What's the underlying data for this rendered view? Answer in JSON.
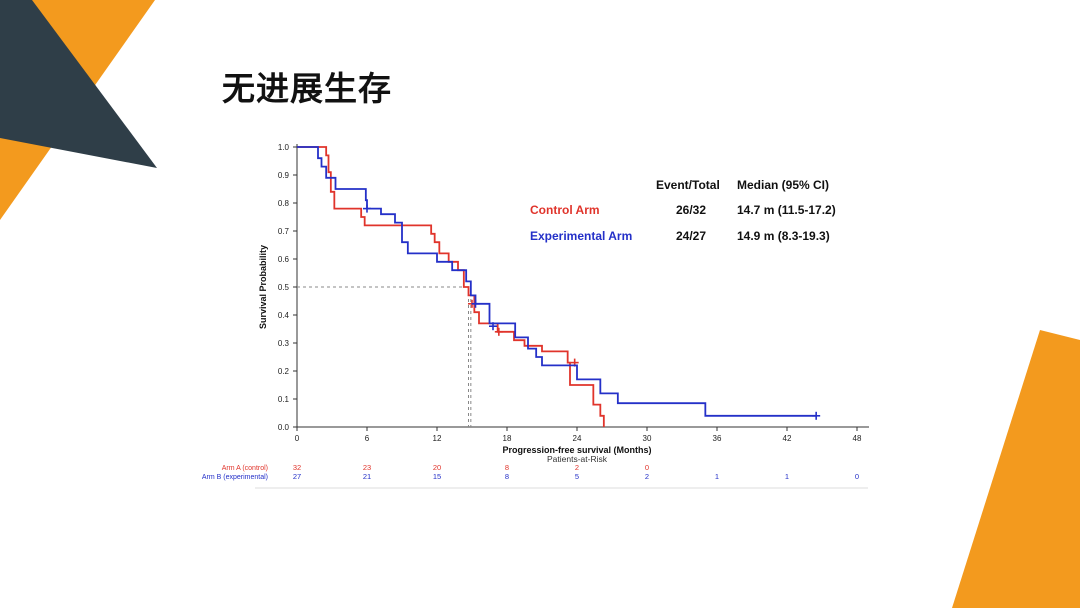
{
  "slide": {
    "title": "无进展生存",
    "colors": {
      "orange": "#F39A1E",
      "slate": "#2F3E48"
    }
  },
  "chart_data": {
    "type": "line",
    "title": "",
    "xlabel": "Progression-free survival (Months)",
    "ylabel": "Survival Probability",
    "xlim": [
      0,
      48
    ],
    "ylim": [
      0,
      1
    ],
    "xticks": [
      0,
      6,
      12,
      18,
      24,
      30,
      36,
      42,
      48
    ],
    "yticks": [
      0.0,
      0.1,
      0.2,
      0.3,
      0.4,
      0.5,
      0.6,
      0.7,
      0.8,
      0.9,
      1.0
    ],
    "median_reference": {
      "y": 0.5,
      "x": [
        14.7,
        14.9
      ]
    },
    "legend": {
      "headers": [
        "Event/Total",
        "Median (95% CI)"
      ],
      "rows": [
        {
          "name": "Control Arm",
          "events": "26/32",
          "median": "14.7 m (11.5-17.2)",
          "color": "#E0342B"
        },
        {
          "name": "Experimental Arm",
          "events": "24/27",
          "median": "14.9 m (8.3-19.3)",
          "color": "#2430C8"
        }
      ]
    },
    "series": [
      {
        "name": "Control Arm",
        "color": "#E0342B",
        "steps": [
          [
            0,
            1.0
          ],
          [
            2.5,
            0.97
          ],
          [
            2.7,
            0.91
          ],
          [
            2.9,
            0.84
          ],
          [
            3.2,
            0.78
          ],
          [
            5.5,
            0.75
          ],
          [
            5.8,
            0.72
          ],
          [
            11.5,
            0.69
          ],
          [
            11.8,
            0.66
          ],
          [
            12.2,
            0.62
          ],
          [
            13,
            0.59
          ],
          [
            13.8,
            0.56
          ],
          [
            14.3,
            0.5
          ],
          [
            14.7,
            0.47
          ],
          [
            15.2,
            0.41
          ],
          [
            15.6,
            0.37
          ],
          [
            17.2,
            0.34
          ],
          [
            18.6,
            0.31
          ],
          [
            19.5,
            0.29
          ],
          [
            21,
            0.27
          ],
          [
            23.2,
            0.23
          ],
          [
            23.4,
            0.15
          ],
          [
            25.4,
            0.08
          ],
          [
            26,
            0.04
          ],
          [
            26.3,
            0.0
          ]
        ],
        "censored": [
          [
            15,
            0.44
          ],
          [
            17.3,
            0.34
          ],
          [
            23.8,
            0.23
          ]
        ]
      },
      {
        "name": "Experimental Arm",
        "color": "#2430C8",
        "steps": [
          [
            0,
            1.0
          ],
          [
            1.8,
            0.96
          ],
          [
            2.1,
            0.93
          ],
          [
            2.5,
            0.89
          ],
          [
            3.3,
            0.85
          ],
          [
            5.9,
            0.81
          ],
          [
            6,
            0.78
          ],
          [
            7.2,
            0.76
          ],
          [
            8.4,
            0.73
          ],
          [
            9,
            0.66
          ],
          [
            9.5,
            0.62
          ],
          [
            11.6,
            0.62
          ],
          [
            12,
            0.59
          ],
          [
            13.3,
            0.56
          ],
          [
            14.5,
            0.52
          ],
          [
            14.9,
            0.47
          ],
          [
            15.3,
            0.44
          ],
          [
            16.5,
            0.37
          ],
          [
            18.7,
            0.32
          ],
          [
            19.8,
            0.28
          ],
          [
            20.5,
            0.25
          ],
          [
            21,
            0.22
          ],
          [
            24,
            0.17
          ],
          [
            26,
            0.12
          ],
          [
            27.5,
            0.085
          ],
          [
            35,
            0.04
          ],
          [
            44.5,
            0.04
          ]
        ],
        "censored": [
          [
            6,
            0.78
          ],
          [
            15.3,
            0.44
          ],
          [
            16.8,
            0.36
          ],
          [
            44.5,
            0.04
          ]
        ]
      }
    ],
    "risk_table": {
      "title": "Patients-at-Risk",
      "rows": [
        {
          "label": "Arm A (control)",
          "color": "#E0342B",
          "times": [
            0,
            6,
            12,
            18,
            24,
            30
          ],
          "counts": [
            "32",
            "23",
            "20",
            "8",
            "2",
            "0"
          ]
        },
        {
          "label": "Arm B (experimental)",
          "color": "#2430C8",
          "times": [
            0,
            6,
            12,
            18,
            24,
            30,
            36,
            42,
            48
          ],
          "counts": [
            "27",
            "21",
            "15",
            "8",
            "5",
            "2",
            "1",
            "1",
            "0"
          ]
        }
      ]
    }
  }
}
